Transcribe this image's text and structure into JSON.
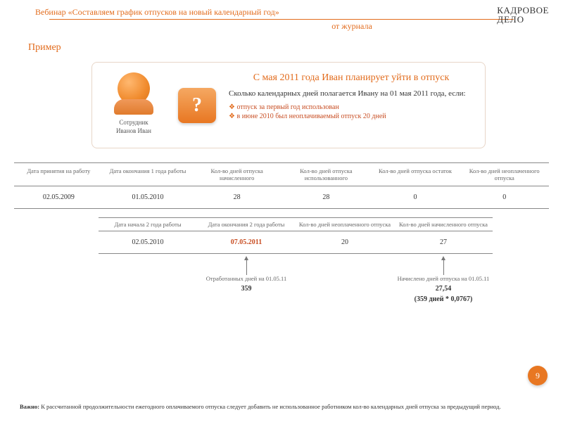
{
  "brand": {
    "line1": "КАДРОВОЕ",
    "line2": "ДЕЛО"
  },
  "header": {
    "webinar": "Вебинар «Составляем график отпусков на новый календарный год»",
    "from": "от журнала"
  },
  "primer": "Пример",
  "card": {
    "user_label": "Сотрудник\nИванов Иван",
    "question_mark": "?",
    "title": "С мая 2011 года Иван планирует уйти в отпуск",
    "question": "Сколько календарных дней полагается Ивану на 01 мая 2011 года, если:",
    "bullets": [
      "отпуск за первый год использован",
      "в июне 2010 был неоплачиваемый отпуск 20 дней"
    ]
  },
  "table1": {
    "headers": [
      "Дата принятия на работу",
      "Дата окончания 1 года работы",
      "Кол-во дней отпуска начисленного",
      "Кол-во дней отпуска использованного",
      "Кол-во дней отпуска остаток",
      "Кол-во дней неоплаченного отпуска"
    ],
    "row": [
      "02.05.2009",
      "01.05.2010",
      "28",
      "28",
      "0",
      "0"
    ]
  },
  "table2": {
    "headers": [
      "Дата начала 2 года работы",
      "Дата окончания 2 года работы",
      "Кол-во дней неоплаченного отпуска",
      "Кол-во дней начисленного отпуска"
    ],
    "row": [
      "02.05.2010",
      "07.05.2011",
      "20",
      "27"
    ],
    "highlight_index": 1
  },
  "annotations": {
    "left": {
      "label": "Отработанных дней на 01.05.11",
      "value": "359"
    },
    "right": {
      "label": "Начислено дней отпуска на 01.05.11",
      "value": "27,54",
      "formula": "(359 дней * 0,0767)"
    }
  },
  "page_number": "9",
  "footnote_label": "Важно:",
  "footnote": " К рассчитанной продолжительности ежегодного оплачиваемого отпуска следует добавить не использованное работником кол-во календарных дней отпуска за предыдущий период.",
  "colors": {
    "accent": "#e26b1c",
    "highlight": "#c84e23",
    "badge": "#e87722"
  }
}
